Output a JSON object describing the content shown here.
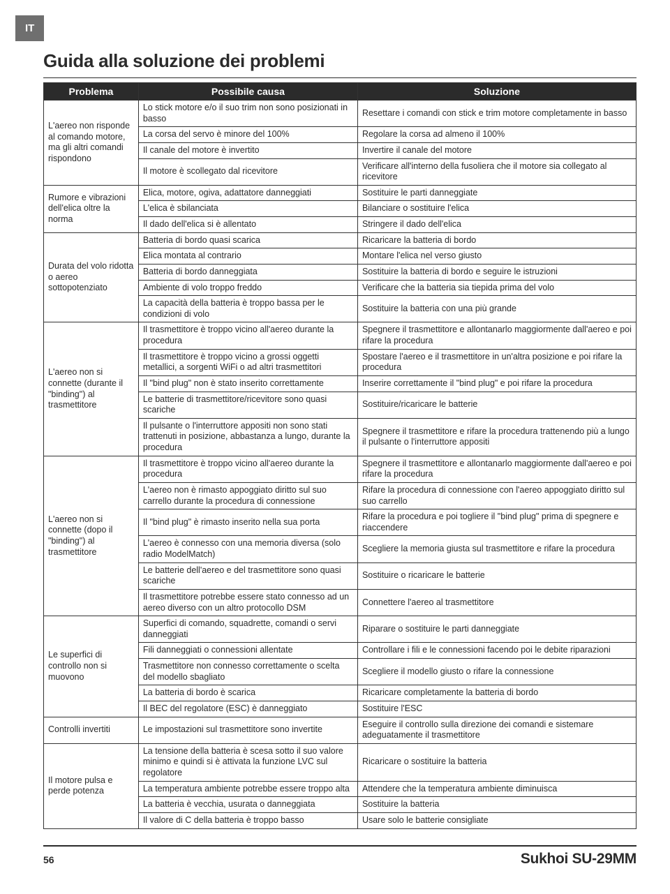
{
  "lang_tab": "IT",
  "title": "Guida alla soluzione dei problemi",
  "page_number": "56",
  "model_name": "Sukhoi SU-29MM",
  "table": {
    "columns": [
      "Problema",
      "Possibile causa",
      "Soluzione"
    ],
    "groups": [
      {
        "problem": "L'aereo non risponde al comando motore, ma gli altri comandi rispondono",
        "rows": [
          {
            "cause": "Lo stick motore e/o il suo trim non sono posizionati in basso",
            "solution": "Resettare i comandi con stick e trim motore completamente in basso"
          },
          {
            "cause": "La corsa del servo è minore del 100%",
            "solution": "Regolare la corsa ad almeno il 100%"
          },
          {
            "cause": "Il canale del motore è invertito",
            "solution": "Invertire il canale del motore"
          },
          {
            "cause": "Il motore è scollegato dal ricevitore",
            "solution": "Verificare all'interno della fusoliera che il motore sia collegato al ricevitore"
          }
        ]
      },
      {
        "problem": "Rumore e vibrazioni dell'elica oltre la norma",
        "rows": [
          {
            "cause": "Elica, motore, ogiva, adattatore danneggiati",
            "solution": "Sostituire le parti danneggiate"
          },
          {
            "cause": "L'elica è sbilanciata",
            "solution": "Bilanciare o sostituire l'elica"
          },
          {
            "cause": "Il dado dell'elica si è allentato",
            "solution": "Stringere il dado dell'elica"
          }
        ]
      },
      {
        "problem": "Durata del volo ridotta o aereo sottopotenziato",
        "rows": [
          {
            "cause": "Batteria di bordo quasi scarica",
            "solution": "Ricaricare la batteria di bordo"
          },
          {
            "cause": "Elica montata al contrario",
            "solution": "Montare l'elica nel verso giusto"
          },
          {
            "cause": "Batteria di bordo danneggiata",
            "solution": "Sostituire la batteria di bordo e seguire le istruzioni"
          },
          {
            "cause": "Ambiente di volo troppo freddo",
            "solution": "Verificare che la batteria sia tiepida prima del volo"
          },
          {
            "cause": "La capacità della batteria è troppo bassa per le condizioni di volo",
            "solution": "Sostituire la batteria con una più grande"
          }
        ]
      },
      {
        "problem": "L'aereo non si connette (durante il \"binding\") al trasmettitore",
        "rows": [
          {
            "cause": "Il trasmettitore è troppo vicino all'aereo durante la procedura",
            "solution": "Spegnere il trasmettitore e allontanarlo maggiormente dall'aereo e poi rifare la procedura"
          },
          {
            "cause": "Il trasmettitore è troppo vicino a grossi oggetti metallici, a sorgenti WiFi o ad altri trasmettitori",
            "solution": "Spostare l'aereo e il trasmettitore in un'altra posizione e poi rifare la procedura"
          },
          {
            "cause": "Il \"bind plug\" non è stato inserito correttamente",
            "solution": "Inserire correttamente il \"bind plug\" e poi rifare la procedura"
          },
          {
            "cause": "Le batterie di trasmettitore/ricevitore sono quasi scariche",
            "solution": "Sostituire/ricaricare le batterie"
          },
          {
            "cause": "Il pulsante o l'interruttore appositi non sono stati trattenuti in posizione, abbastanza a lungo, durante la procedura",
            "solution": "Spegnere il trasmettitore e rifare la procedura trattenendo più a lungo il pulsante o l'interruttore appositi"
          }
        ]
      },
      {
        "problem": "L'aereo non si connette (dopo il \"binding\") al trasmettitore",
        "rows": [
          {
            "cause": "Il trasmettitore è troppo vicino all'aereo durante la procedura",
            "solution": "Spegnere il trasmettitore e allontanarlo maggiormente dall'aereo e poi rifare la procedura"
          },
          {
            "cause": "L'aereo non è rimasto appoggiato diritto sul suo carrello durante la procedura di connessione",
            "solution": "Rifare la procedura di connessione con l'aereo appoggiato diritto sul suo carrello"
          },
          {
            "cause": "Il \"bind plug\" è rimasto inserito nella sua porta",
            "solution": "Rifare la procedura e poi togliere il \"bind plug\" prima di spegnere e riaccendere"
          },
          {
            "cause": "L'aereo è connesso con una memoria diversa (solo radio ModelMatch)",
            "solution": "Scegliere la memoria giusta sul trasmettitore e rifare la procedura"
          },
          {
            "cause": "Le batterie dell'aereo e del trasmettitore sono quasi scariche",
            "solution": "Sostituire o ricaricare le batterie"
          },
          {
            "cause": "Il trasmettitore potrebbe essere stato connesso ad un aereo diverso con un altro protocollo DSM",
            "solution": "Connettere l'aereo al trasmettitore"
          }
        ]
      },
      {
        "problem": "Le superfici di controllo non si muovono",
        "rows": [
          {
            "cause": "Superfici di comando, squadrette, comandi o servi danneggiati",
            "solution": "Riparare o sostituire le parti danneggiate"
          },
          {
            "cause": "Fili danneggiati o connessioni allentate",
            "solution": "Controllare i fili e le connessioni facendo poi le debite riparazioni"
          },
          {
            "cause": "Trasmettitore non connesso correttamente o scelta del modello sbagliato",
            "solution": "Scegliere il modello giusto o rifare la connessione"
          },
          {
            "cause": "La batteria di bordo è scarica",
            "solution": "Ricaricare completamente la batteria di bordo"
          },
          {
            "cause": "Il BEC del regolatore (ESC) è danneggiato",
            "solution": "Sostituire l'ESC"
          }
        ]
      },
      {
        "problem": "Controlli invertiti",
        "rows": [
          {
            "cause": "Le impostazioni sul trasmettitore sono invertite",
            "solution": "Eseguire il controllo sulla direzione dei comandi e sistemare adeguatamente il trasmettitore"
          }
        ]
      },
      {
        "problem": "Il motore pulsa e perde potenza",
        "rows": [
          {
            "cause": "La tensione della batteria è scesa sotto il suo valore minimo e quindi si è attivata la funzione LVC sul regolatore",
            "solution": "Ricaricare o sostituire la batteria"
          },
          {
            "cause": "La temperatura ambiente potrebbe essere troppo alta",
            "solution": "Attendere che la temperatura ambiente diminuisca"
          },
          {
            "cause": "La batteria è vecchia, usurata o danneggiata",
            "solution": "Sostituire la batteria"
          },
          {
            "cause": "Il valore di C della batteria è troppo basso",
            "solution": "Usare solo le batterie consigliate"
          }
        ]
      }
    ]
  }
}
